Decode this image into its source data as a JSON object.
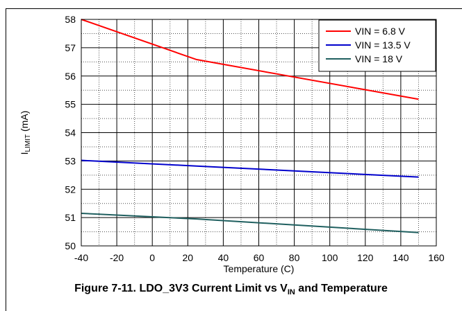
{
  "chart_data": {
    "type": "line",
    "xlabel": "Temperature (C)",
    "ylabel_main": "I",
    "ylabel_sub": "LIMIT",
    "ylabel_unit": " (mA)",
    "xlim": [
      -40,
      160
    ],
    "ylim": [
      50,
      58
    ],
    "xticks": [
      -40,
      -20,
      0,
      20,
      40,
      60,
      80,
      100,
      120,
      140,
      160
    ],
    "yticks": [
      50,
      51,
      52,
      53,
      54,
      55,
      56,
      57,
      58
    ],
    "x_minor_step": 10,
    "y_minor_step": 0.5,
    "grid": true,
    "legend_position": "top-right",
    "series": [
      {
        "name": "VIN = 6.8 V",
        "color": "#ff0000",
        "x": [
          -40,
          25,
          150
        ],
        "y": [
          58.0,
          56.58,
          55.18
        ]
      },
      {
        "name": "VIN = 13.5 V",
        "color": "#0000cc",
        "x": [
          -40,
          25,
          150
        ],
        "y": [
          53.02,
          52.82,
          52.43
        ]
      },
      {
        "name": "VIN = 18 V",
        "color": "#1f5f5f",
        "x": [
          -40,
          25,
          150
        ],
        "y": [
          51.15,
          50.95,
          50.47
        ]
      }
    ]
  },
  "caption": {
    "prefix": "Figure 7-11. LDO_3V3 Current Limit vs V",
    "sub": "IN",
    "suffix": " and Temperature"
  }
}
